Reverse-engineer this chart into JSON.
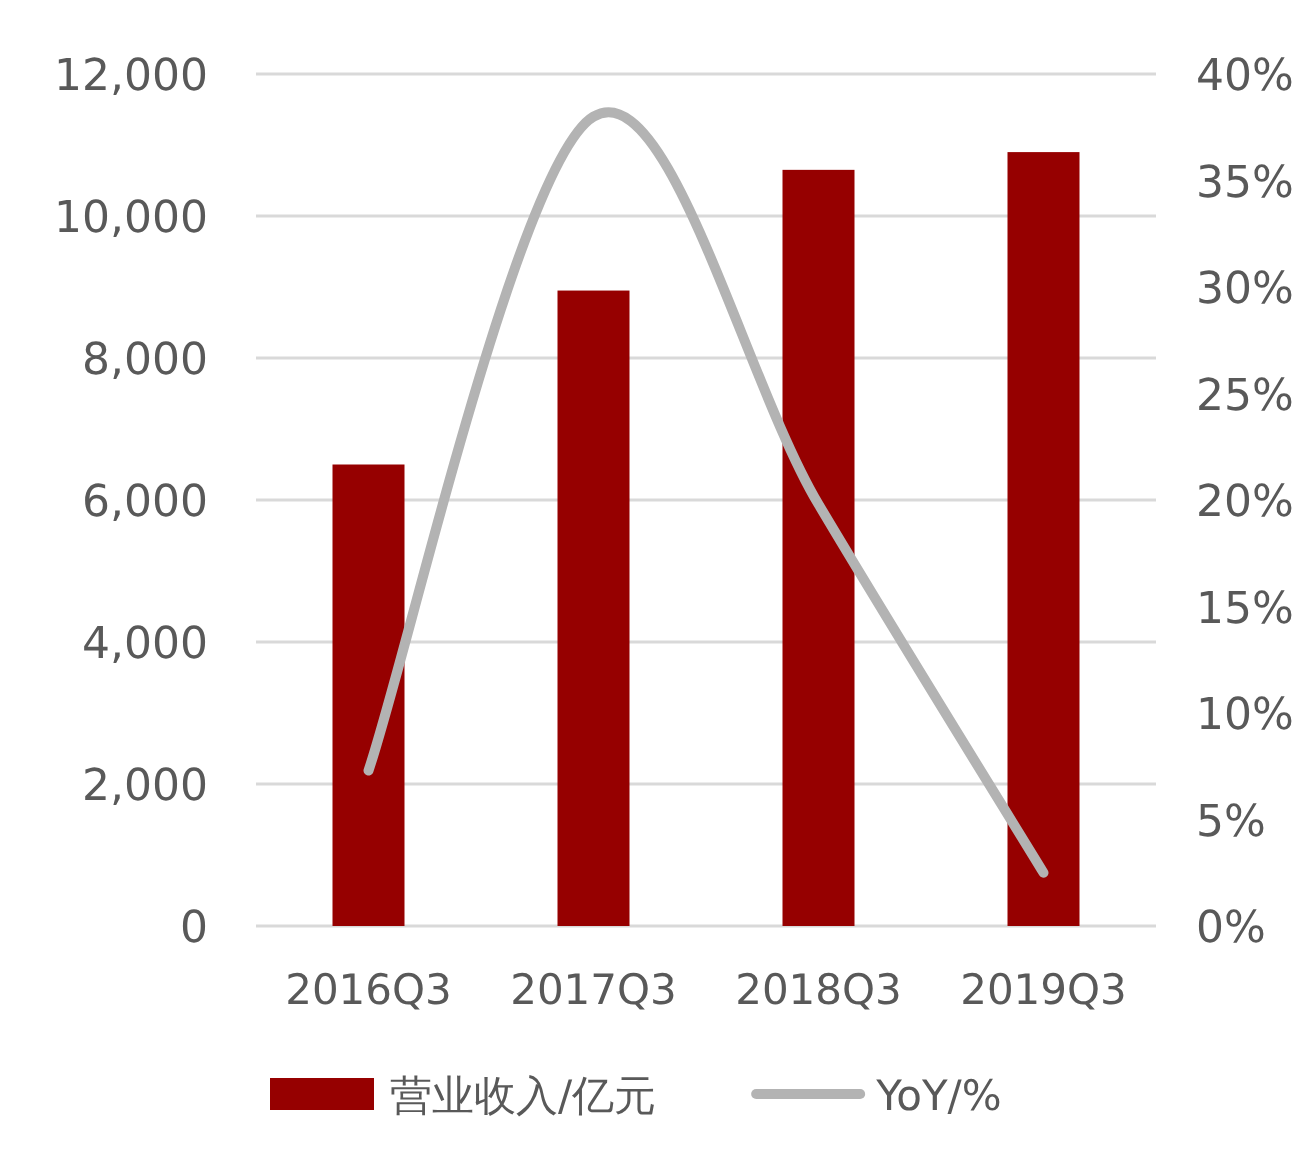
{
  "chart_data": {
    "type": "bar",
    "categories": [
      "2016Q3",
      "2017Q3",
      "2018Q3",
      "2019Q3"
    ],
    "series": [
      {
        "name": "营业收入/亿元",
        "color": "#960000",
        "values": [
          6500,
          8950,
          10650,
          10900
        ]
      },
      {
        "name": "YoY/%",
        "type": "line",
        "axis": "y2",
        "color": "#b3b3b3",
        "values": [
          7.3,
          38,
          19.8,
          2.5
        ]
      }
    ],
    "ylim": [
      0,
      12000
    ],
    "yticks": [
      {
        "value": 0,
        "label": "0"
      },
      {
        "value": 2000,
        "label": "2,000"
      },
      {
        "value": 4000,
        "label": "4,000"
      },
      {
        "value": 6000,
        "label": "6,000"
      },
      {
        "value": 8000,
        "label": "8,000"
      },
      {
        "value": 10000,
        "label": "10,000"
      },
      {
        "value": 12000,
        "label": "12,000"
      }
    ],
    "y2lim": [
      0,
      40
    ],
    "y2ticks": [
      {
        "value": 0,
        "label": "0%"
      },
      {
        "value": 5,
        "label": "5%"
      },
      {
        "value": 10,
        "label": "10%"
      },
      {
        "value": 15,
        "label": "15%"
      },
      {
        "value": 20,
        "label": "20%"
      },
      {
        "value": 25,
        "label": "25%"
      },
      {
        "value": 30,
        "label": "30%"
      },
      {
        "value": 35,
        "label": "35%"
      },
      {
        "value": 40,
        "label": "40%"
      }
    ],
    "grid": "y",
    "legend": "bottom"
  }
}
